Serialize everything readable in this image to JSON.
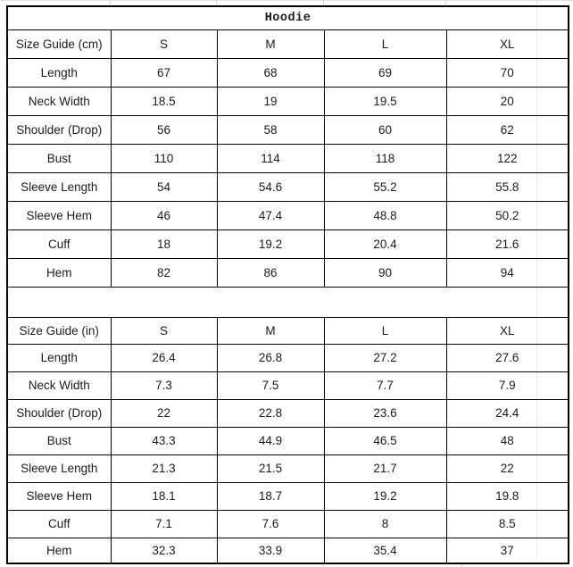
{
  "title": "Hoodie",
  "colors": {
    "border": "#000000",
    "text": "#1b1b1b",
    "gridline": "#d9d9d9",
    "background": "#ffffff"
  },
  "chart_data": [
    {
      "type": "table",
      "title": "Hoodie",
      "columns": [
        "Size Guide (cm)",
        "S",
        "M",
        "L",
        "XL"
      ],
      "rows": [
        [
          "Length",
          "67",
          "68",
          "69",
          "70"
        ],
        [
          "Neck Width",
          "18.5",
          "19",
          "19.5",
          "20"
        ],
        [
          "Shoulder (Drop)",
          "56",
          "58",
          "60",
          "62"
        ],
        [
          "Bust",
          "110",
          "114",
          "118",
          "122"
        ],
        [
          "Sleeve Length",
          "54",
          "54.6",
          "55.2",
          "55.8"
        ],
        [
          "Sleeve Hem",
          "46",
          "47.4",
          "48.8",
          "50.2"
        ],
        [
          "Cuff",
          "18",
          "19.2",
          "20.4",
          "21.6"
        ],
        [
          "Hem",
          "82",
          "86",
          "90",
          "94"
        ]
      ]
    },
    {
      "type": "table",
      "columns": [
        "Size Guide (in)",
        "S",
        "M",
        "L",
        "XL"
      ],
      "rows": [
        [
          "Length",
          "26.4",
          "26.8",
          "27.2",
          "27.6"
        ],
        [
          "Neck Width",
          "7.3",
          "7.5",
          "7.7",
          "7.9"
        ],
        [
          "Shoulder (Drop)",
          "22",
          "22.8",
          "23.6",
          "24.4"
        ],
        [
          "Bust",
          "43.3",
          "44.9",
          "46.5",
          "48"
        ],
        [
          "Sleeve Length",
          "21.3",
          "21.5",
          "21.7",
          "22"
        ],
        [
          "Sleeve Hem",
          "18.1",
          "18.7",
          "19.2",
          "19.8"
        ],
        [
          "Cuff",
          "7.1",
          "7.6",
          "8",
          "8.5"
        ],
        [
          "Hem",
          "32.3",
          "33.9",
          "35.4",
          "37"
        ]
      ]
    }
  ]
}
